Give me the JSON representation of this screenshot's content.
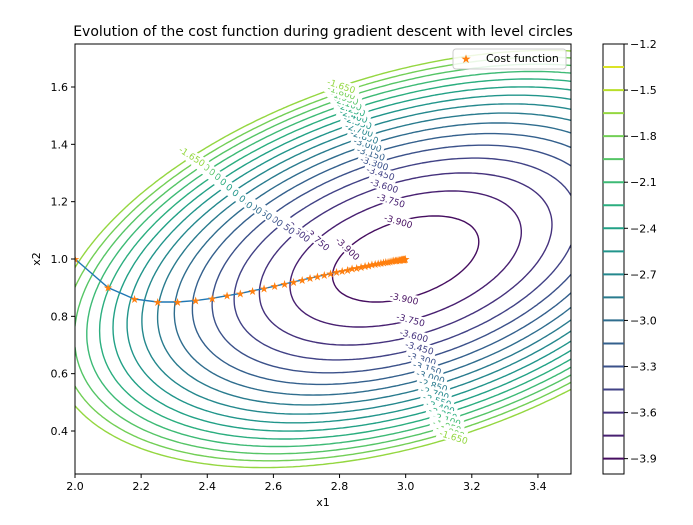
{
  "chart_data": {
    "type": "contour",
    "title": "Evolution of the cost function during gradient descent with level circles",
    "xlabel": "x1",
    "ylabel": "x2",
    "xlim": [
      2.0,
      3.5
    ],
    "ylim": [
      0.25,
      1.75
    ],
    "x_ticks": [
      "2.0",
      "2.2",
      "2.4",
      "2.6",
      "2.8",
      "3.0",
      "3.2",
      "3.4"
    ],
    "y_ticks": [
      "0.4",
      "0.6",
      "0.8",
      "1.0",
      "1.2",
      "1.4",
      "1.6"
    ],
    "contour_levels": [
      -3.9,
      -3.75,
      -3.6,
      -3.45,
      -3.3,
      -3.15,
      -3.0,
      -2.85,
      -2.7,
      -2.55,
      -2.4,
      -2.25,
      -2.1,
      -1.95,
      -1.8,
      -1.65
    ],
    "contour_label_texts": [
      "-1.650",
      "-1.800",
      "-1.950",
      "-2.100",
      "-2.250",
      "-2.400",
      "-2.550",
      "-2.700",
      "-2.850",
      "-3.000",
      "-3.150",
      "-3.300",
      "-3.450",
      "-3.600",
      "-3.750",
      "-3.900"
    ],
    "colormap": "viridis",
    "colorbar": {
      "ticks": [
        "−1.2",
        "−1.5",
        "−1.8",
        "−2.1",
        "−2.4",
        "−2.7",
        "−3.0",
        "−3.3",
        "−3.6",
        "−3.9"
      ],
      "tick_values": [
        -1.2,
        -1.5,
        -1.8,
        -2.1,
        -2.4,
        -2.7,
        -3.0,
        -3.3,
        -3.6,
        -3.9
      ],
      "range": [
        -4.0,
        -1.2
      ]
    },
    "legend": {
      "entries": [
        "Cost function"
      ],
      "placement": "top-right",
      "marker": "star",
      "color": "#ff7f0e"
    },
    "path": {
      "color": "#ff7f0e",
      "line_color": "#1f77b4",
      "x": [
        2.0,
        2.1,
        2.18,
        2.25,
        2.31,
        2.365,
        2.415,
        2.46,
        2.5,
        2.537,
        2.572,
        2.604,
        2.634,
        2.661,
        2.687,
        2.711,
        2.733,
        2.754,
        2.773,
        2.791,
        2.808,
        2.824,
        2.838,
        2.852,
        2.865,
        2.877,
        2.888,
        2.898,
        2.908,
        2.917,
        2.925,
        2.933,
        2.94,
        2.947,
        2.953,
        2.959,
        2.964,
        2.969,
        2.973,
        2.977,
        2.981,
        2.984,
        2.987,
        2.99,
        2.992,
        2.994,
        2.996,
        2.998,
        2.999
      ],
      "y": [
        1.0,
        0.9,
        0.86,
        0.85,
        0.85,
        0.855,
        0.863,
        0.872,
        0.88,
        0.889,
        0.897,
        0.905,
        0.913,
        0.92,
        0.927,
        0.933,
        0.939,
        0.944,
        0.949,
        0.954,
        0.958,
        0.962,
        0.966,
        0.969,
        0.972,
        0.975,
        0.978,
        0.98,
        0.982,
        0.984,
        0.986,
        0.988,
        0.989,
        0.99,
        0.992,
        0.993,
        0.994,
        0.995,
        0.995,
        0.996,
        0.997,
        0.997,
        0.998,
        0.998,
        0.999,
        0.999,
        0.999,
        1.0,
        1.0
      ]
    }
  }
}
